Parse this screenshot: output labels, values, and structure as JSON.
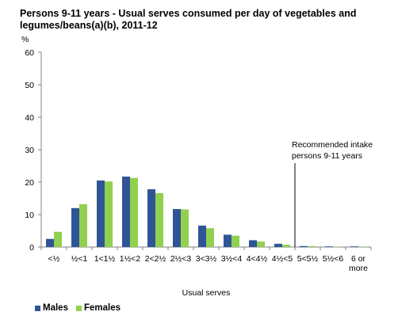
{
  "chart_data": {
    "type": "bar",
    "title": "Persons 9-11 years - Usual serves consumed  per day of vegetables and legumes/beans(a)(b), 2011-12",
    "ylabel": "%",
    "xlabel": "Usual serves",
    "ylim": [
      0,
      60
    ],
    "yticks": [
      "0",
      "10",
      "20",
      "30",
      "40",
      "50",
      "60"
    ],
    "grid": false,
    "legend_position": "bottom-left",
    "categories": [
      [
        "<½"
      ],
      [
        "½<1"
      ],
      [
        "1<1½"
      ],
      [
        "1½<2"
      ],
      [
        "2<2½"
      ],
      [
        "2½<3"
      ],
      [
        "3<3½"
      ],
      [
        "3½<4"
      ],
      [
        "4<4½"
      ],
      [
        "4½<5"
      ],
      [
        "5<5½"
      ],
      [
        "5½<6"
      ],
      [
        "6 or",
        "more"
      ]
    ],
    "series": [
      {
        "name": "Males",
        "color": "#2f5597",
        "values": [
          2.5,
          12.0,
          20.5,
          21.7,
          17.8,
          11.7,
          6.6,
          3.8,
          2.1,
          1.0,
          0.3,
          0.2,
          0.2
        ]
      },
      {
        "name": "Females",
        "color": "#92d050",
        "values": [
          4.7,
          13.2,
          20.2,
          21.3,
          16.6,
          11.6,
          5.8,
          3.5,
          1.7,
          0.7,
          0.3,
          0.1,
          0.1
        ]
      }
    ],
    "annotation": {
      "lines": [
        "Recommended intake",
        "persons 9-11 years"
      ],
      "x_after_category_index": 9
    }
  }
}
